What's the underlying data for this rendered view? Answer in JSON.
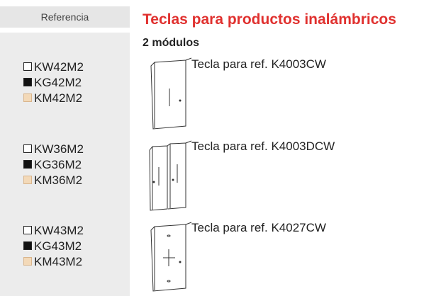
{
  "header": {
    "reference_label": "Referencia",
    "title": "Teclas para productos inalámbricos",
    "subtitle": "2 módulos"
  },
  "products": [
    {
      "references": [
        "KW42M2",
        "KG42M2",
        "KM42M2"
      ],
      "description": "Tecla para ref. K4003CW"
    },
    {
      "references": [
        "KW36M2",
        "KG36M2",
        "KM36M2"
      ],
      "description": "Tecla para ref. K4003DCW"
    },
    {
      "references": [
        "KW43M2",
        "KG43M2",
        "KM43M2"
      ],
      "description": "Tecla para ref. K4027CW"
    }
  ]
}
